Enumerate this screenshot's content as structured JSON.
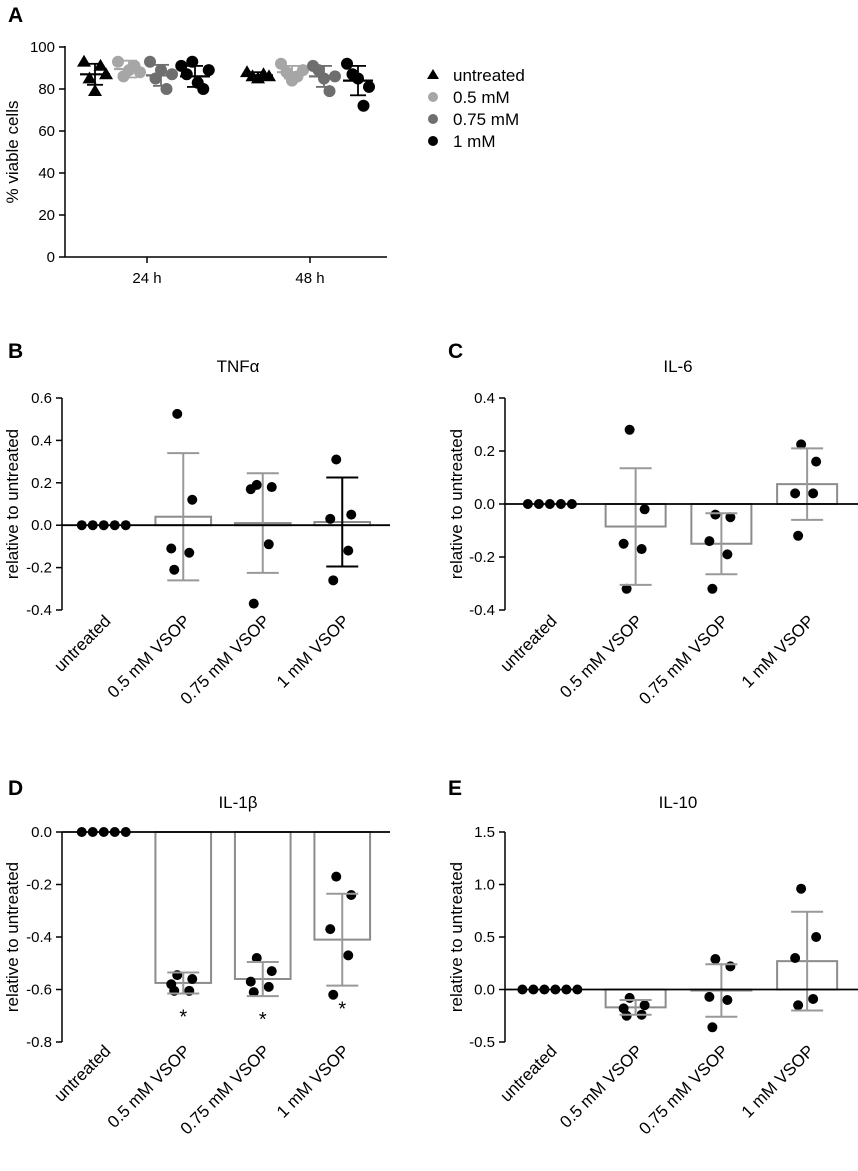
{
  "chart_data": [
    {
      "panel": "A",
      "type": "scatter",
      "title": "",
      "ylabel": "% viable cells",
      "xlabel": "",
      "ylim": [
        0,
        100
      ],
      "yticks": [
        "0",
        "20",
        "40",
        "60",
        "80",
        "100"
      ],
      "categories": [
        "24 h",
        "48 h"
      ],
      "series": [
        {
          "name": "untreated",
          "color": "#000000",
          "marker": "triangle",
          "points": [
            [
              93,
              85,
              79,
              91,
              87
            ],
            [
              88,
              86,
              85,
              87,
              86
            ]
          ],
          "mean": [
            87,
            86.5
          ],
          "sd": [
            5,
            1.5
          ]
        },
        {
          "name": "0.5 mM",
          "color": "#a6a6a6",
          "marker": "circle",
          "points": [
            [
              93,
              86,
              89,
              91,
              88
            ],
            [
              92,
              88,
              84,
              86,
              89
            ]
          ],
          "mean": [
            89.5,
            88
          ],
          "sd": [
            4,
            3
          ]
        },
        {
          "name": "0.75 mM",
          "color": "#6e6e6e",
          "marker": "circle",
          "points": [
            [
              93,
              85,
              89,
              80,
              87
            ],
            [
              91,
              89,
              85,
              79,
              86
            ]
          ],
          "mean": [
            86.5,
            86
          ],
          "sd": [
            5,
            5
          ]
        },
        {
          "name": "1 mM",
          "color": "#000000",
          "marker": "circle",
          "points": [
            [
              91,
              87,
              93,
              83,
              80,
              89
            ],
            [
              92,
              87,
              85,
              72,
              81
            ]
          ],
          "mean": [
            86,
            84
          ],
          "sd": [
            5,
            7
          ]
        }
      ],
      "legend_position": "right"
    },
    {
      "panel": "B",
      "type": "bar",
      "title": "TNFα",
      "ylabel": "relative to untreated",
      "ylim": [
        -0.4,
        0.6
      ],
      "yticks": [
        "-0.4",
        "-0.2",
        "0.0",
        "0.2",
        "0.4",
        "0.6"
      ],
      "categories": [
        "untreated",
        "0.5 mM VSOP",
        "0.75 mM VSOP",
        "1 mM VSOP"
      ],
      "values": [
        0,
        0.04,
        0.01,
        0.015
      ],
      "sd": [
        0,
        0.3,
        0.235,
        0.21
      ],
      "points": [
        [
          0,
          0,
          0,
          0,
          0
        ],
        [
          0.525,
          0.12,
          -0.11,
          -0.13,
          -0.21
        ],
        [
          0.19,
          0.18,
          0.17,
          -0.09,
          -0.37
        ],
        [
          0.31,
          0.05,
          0.03,
          -0.12,
          -0.26
        ]
      ],
      "significance": [
        "",
        "",
        "",
        ""
      ],
      "bar_colors": [
        "#999999",
        "#999999",
        "#999999",
        "#000000"
      ]
    },
    {
      "panel": "C",
      "type": "bar",
      "title": "IL-6",
      "ylabel": "relative to untreated",
      "ylim": [
        -0.4,
        0.4
      ],
      "yticks": [
        "-0.4",
        "-0.2",
        "0.0",
        "0.2",
        "0.4"
      ],
      "categories": [
        "untreated",
        "0.5 mM VSOP",
        "0.75 mM VSOP",
        "1 mM VSOP"
      ],
      "values": [
        0,
        -0.085,
        -0.15,
        0.075
      ],
      "sd": [
        0,
        0.22,
        0.115,
        0.135
      ],
      "points": [
        [
          0,
          0,
          0,
          0,
          0
        ],
        [
          0.28,
          -0.02,
          -0.15,
          -0.17,
          -0.32
        ],
        [
          -0.04,
          -0.05,
          -0.14,
          -0.19,
          -0.32
        ],
        [
          0.225,
          0.16,
          0.04,
          0.04,
          -0.12
        ]
      ],
      "significance": [
        "",
        "",
        "",
        ""
      ],
      "bar_colors": [
        "#999999",
        "#999999",
        "#999999",
        "#999999"
      ]
    },
    {
      "panel": "D",
      "type": "bar",
      "title": "IL-1β",
      "ylabel": "relative to untreated",
      "ylim": [
        -0.8,
        0.0
      ],
      "yticks": [
        "-0.8",
        "-0.6",
        "-0.4",
        "-0.2",
        "0.0"
      ],
      "categories": [
        "untreated",
        "0.5 mM VSOP",
        "0.75 mM VSOP",
        "1 mM VSOP"
      ],
      "values": [
        0,
        -0.575,
        -0.56,
        -0.41
      ],
      "sd": [
        0,
        0.04,
        0.065,
        0.175
      ],
      "points": [
        [
          0,
          0,
          0,
          0,
          0
        ],
        [
          -0.545,
          -0.56,
          -0.58,
          -0.605,
          -0.605
        ],
        [
          -0.48,
          -0.53,
          -0.57,
          -0.59,
          -0.61
        ],
        [
          -0.17,
          -0.24,
          -0.37,
          -0.47,
          -0.62
        ]
      ],
      "significance": [
        "",
        "*",
        "*",
        "*"
      ],
      "bar_colors": [
        "#999999",
        "#999999",
        "#999999",
        "#999999"
      ]
    },
    {
      "panel": "E",
      "type": "bar",
      "title": "IL-10",
      "ylabel": "relative to untreated",
      "ylim": [
        -0.5,
        1.5
      ],
      "yticks": [
        "-0.5",
        "0.0",
        "0.5",
        "1.0",
        "1.5"
      ],
      "categories": [
        "untreated",
        "0.5 mM VSOP",
        "0.75 mM VSOP",
        "1 mM VSOP"
      ],
      "values": [
        0,
        -0.17,
        -0.01,
        0.27
      ],
      "sd": [
        0,
        0.07,
        0.25,
        0.47
      ],
      "points": [
        [
          0,
          0,
          0,
          0,
          0,
          0
        ],
        [
          -0.08,
          -0.15,
          -0.18,
          -0.24,
          -0.25
        ],
        [
          0.29,
          0.22,
          -0.07,
          -0.1,
          -0.36
        ],
        [
          0.96,
          0.5,
          0.3,
          -0.09,
          -0.15
        ]
      ],
      "significance": [
        "",
        "",
        "",
        ""
      ],
      "bar_colors": [
        "#999999",
        "#999999",
        "#999999",
        "#999999"
      ]
    }
  ]
}
